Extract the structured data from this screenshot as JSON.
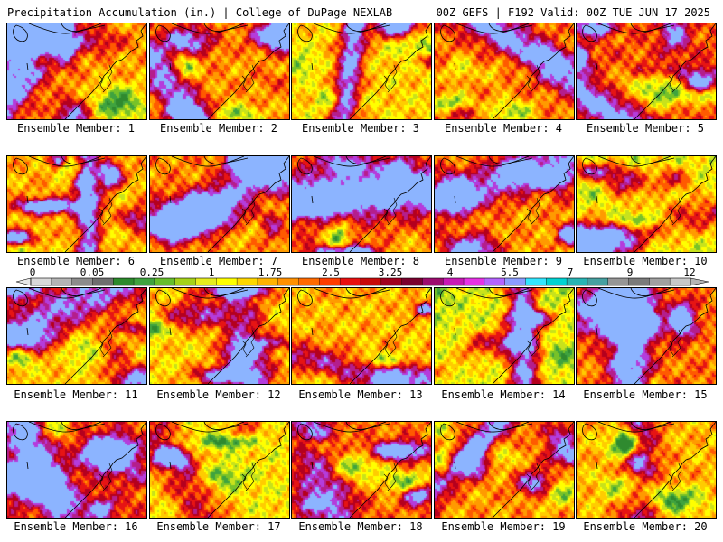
{
  "header": {
    "left": "Precipitation Accumulation (in.) | College of DuPage NEXLAB",
    "right": "00Z GEFS | F192 Valid: 00Z TUE JUN 17 2025"
  },
  "panels": [
    {
      "caption": "Ensemble Member: 1"
    },
    {
      "caption": "Ensemble Member: 2"
    },
    {
      "caption": "Ensemble Member: 3"
    },
    {
      "caption": "Ensemble Member: 4"
    },
    {
      "caption": "Ensemble Member: 5"
    },
    {
      "caption": "Ensemble Member: 6"
    },
    {
      "caption": "Ensemble Member: 7"
    },
    {
      "caption": "Ensemble Member: 8"
    },
    {
      "caption": "Ensemble Member: 9"
    },
    {
      "caption": "Ensemble Member: 10"
    },
    {
      "caption": "Ensemble Member: 11"
    },
    {
      "caption": "Ensemble Member: 12"
    },
    {
      "caption": "Ensemble Member: 13"
    },
    {
      "caption": "Ensemble Member: 14"
    },
    {
      "caption": "Ensemble Member: 15"
    },
    {
      "caption": "Ensemble Member: 16"
    },
    {
      "caption": "Ensemble Member: 17"
    },
    {
      "caption": "Ensemble Member: 18"
    },
    {
      "caption": "Ensemble Member: 19"
    },
    {
      "caption": "Ensemble Member: 20"
    }
  ],
  "colorbar": {
    "tick_labels": [
      "0",
      "0.05",
      "0.25",
      "1",
      "1.75",
      "2.5",
      "3.25",
      "4",
      "5.5",
      "7",
      "9",
      "12"
    ],
    "colors": [
      "#d8d8d8",
      "#b4b4b4",
      "#8c8c8c",
      "#6e6e6e",
      "#2c8a2c",
      "#3fa33f",
      "#66be2c",
      "#a5d219",
      "#e6ec1e",
      "#ffff00",
      "#ffd700",
      "#ffb300",
      "#ff9000",
      "#ff6a00",
      "#ff3c00",
      "#e81010",
      "#c80a0a",
      "#a0001e",
      "#7a002e",
      "#9c0c6e",
      "#c818b4",
      "#e632e6",
      "#b464ff",
      "#8a9cff",
      "#32e6ff",
      "#00d2d2",
      "#28b4b4",
      "#46a0a0",
      "#969696",
      "#7a7a7a",
      "#a0a0a0",
      "#c8c8c8"
    ]
  },
  "field_palette": [
    "#2f8a2f",
    "#3fa33f",
    "#78c228",
    "#c8e21c",
    "#ffff00",
    "#ffcc00",
    "#ff9a00",
    "#ff5a00",
    "#e61414",
    "#b4001e",
    "#b41e8c",
    "#b43cdc",
    "#8cb4ff"
  ],
  "field_intensity": [
    0.48,
    0.5,
    0.4,
    0.55,
    0.6,
    0.47,
    0.52,
    0.58,
    0.5,
    0.3,
    0.42,
    0.4,
    0.45,
    0.3,
    0.55,
    0.62,
    0.36,
    0.55,
    0.5,
    0.45
  ]
}
